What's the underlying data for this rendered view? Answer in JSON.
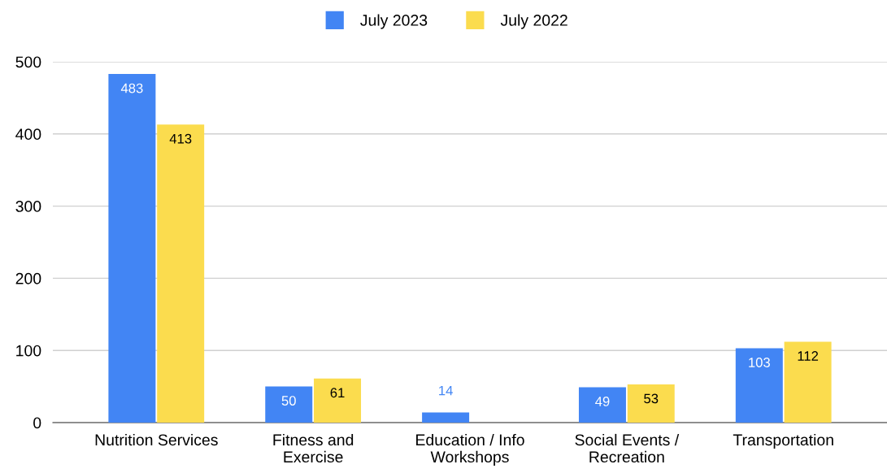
{
  "chart_data": {
    "type": "bar",
    "categories": [
      "Nutrition Services",
      "Fitness and\nExercise",
      "Education / Info\nWorkshops",
      "Social Events /\nRecreation",
      "Transportation"
    ],
    "series": [
      {
        "name": "July 2023",
        "color": "#4285f4",
        "values": [
          483,
          50,
          14,
          49,
          103
        ]
      },
      {
        "name": "July 2022",
        "color": "#fbdc4e",
        "values": [
          413,
          61,
          null,
          53,
          112
        ]
      }
    ],
    "ylim": [
      0,
      500
    ],
    "yticks": [
      0,
      100,
      200,
      300,
      400,
      500
    ],
    "grid": "y",
    "legend": "top",
    "data_labels": true
  }
}
